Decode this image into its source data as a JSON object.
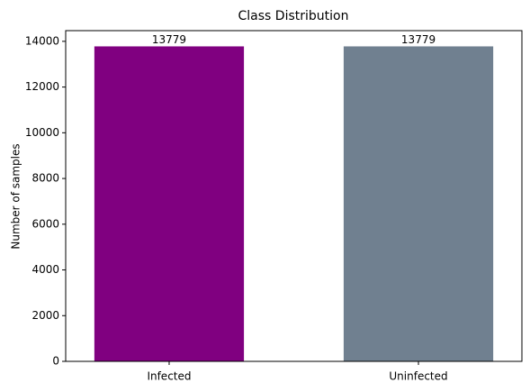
{
  "chart_data": {
    "type": "bar",
    "title": "Class Distribution",
    "y_label": "Number of samples",
    "categories": [
      "Infected",
      "Uninfected"
    ],
    "values": [
      13779,
      13779
    ],
    "colors": [
      "#800080",
      "#708090"
    ],
    "ylim": [
      0,
      14468
    ],
    "yticks": [
      0,
      2000,
      4000,
      6000,
      8000,
      10000,
      12000,
      14000
    ],
    "grid": false
  }
}
